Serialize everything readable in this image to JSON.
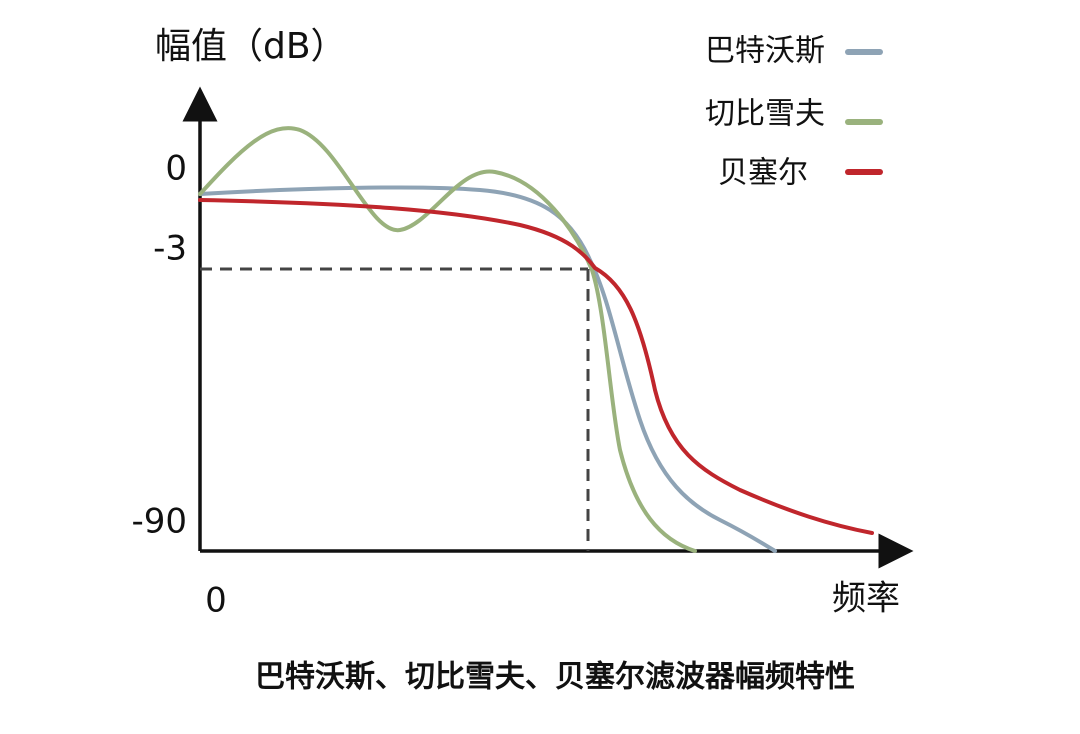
{
  "axis": {
    "y_title": "幅值（dB）",
    "x_title": "频率",
    "y_labels": [
      "0",
      "-3",
      "-90"
    ],
    "x_origin_label": "0"
  },
  "legend": [
    "巴特沃斯",
    "切比雪夫",
    "贝塞尔"
  ],
  "caption": "巴特沃斯、切比雪夫、贝塞尔滤波器幅频特性"
}
